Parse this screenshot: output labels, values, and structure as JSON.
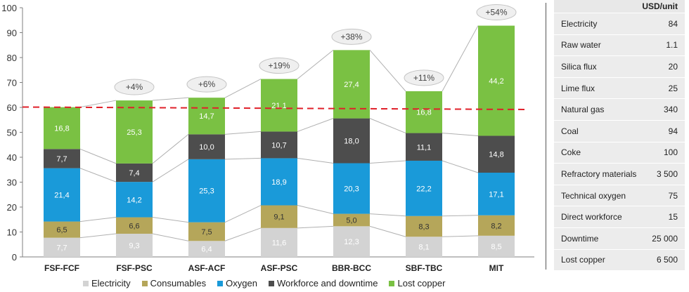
{
  "chart_data": {
    "type": "bar",
    "stacked": true,
    "categories": [
      "FSF-FCF",
      "FSF-PSC",
      "ASF-ACF",
      "ASF-PSC",
      "BBR-BCC",
      "SBF-TBC",
      "MIT"
    ],
    "ylim": [
      0,
      100
    ],
    "yticks": [
      0,
      10,
      20,
      30,
      40,
      50,
      60,
      70,
      80,
      90,
      100
    ],
    "grid": false,
    "legend_position": "bottom",
    "reference_line": 60,
    "series": [
      {
        "name": "Electricity",
        "color": "#d3d3d3",
        "values": [
          7.7,
          9.3,
          6.4,
          11.6,
          12.3,
          8.1,
          8.5
        ],
        "labels": [
          "7,7",
          "9,3",
          "6,4",
          "11,6",
          "12,3",
          "8,1",
          "8,5"
        ]
      },
      {
        "name": "Consumables",
        "color": "#b5a65a",
        "values": [
          6.5,
          6.6,
          7.5,
          9.1,
          5.0,
          8.3,
          8.2
        ],
        "labels": [
          "6,5",
          "6,6",
          "7,5",
          "9,1",
          "5,0",
          "8,3",
          "8,2"
        ]
      },
      {
        "name": "Oxygen",
        "color": "#1a9ad9",
        "values": [
          21.4,
          14.2,
          25.3,
          18.9,
          20.3,
          22.2,
          17.1
        ],
        "labels": [
          "21,4",
          "14,2",
          "25,3",
          "18,9",
          "20,3",
          "22,2",
          "17,1"
        ]
      },
      {
        "name": "Workforce and downtime",
        "color": "#4d4d4d",
        "values": [
          7.7,
          7.4,
          10.0,
          10.7,
          18.0,
          11.1,
          14.8
        ],
        "labels": [
          "7,7",
          "7,4",
          "10,0",
          "10,7",
          "18,0",
          "11,1",
          "14,8"
        ]
      },
      {
        "name": "Lost copper",
        "color": "#7ac143",
        "values": [
          16.8,
          25.3,
          14.7,
          21.1,
          27.4,
          16.8,
          44.2
        ],
        "labels": [
          "16,8",
          "25,3",
          "14,7",
          "21,1",
          "27,4",
          "16,8",
          "44,2"
        ]
      }
    ],
    "annotations": [
      "",
      "+4%",
      "+6%",
      "+19%",
      "+38%",
      "+11%",
      "+54%"
    ]
  },
  "cost_table": {
    "header": "USD/unit",
    "rows": [
      {
        "label": "Electricity",
        "value": "84"
      },
      {
        "label": "Raw water",
        "value": "1.1"
      },
      {
        "label": "Silica flux",
        "value": "20"
      },
      {
        "label": "Lime flux",
        "value": "25"
      },
      {
        "label": "Natural gas",
        "value": "340"
      },
      {
        "label": "Coal",
        "value": "94"
      },
      {
        "label": "Coke",
        "value": "100"
      },
      {
        "label": "Refractory materials",
        "value": "3 500"
      },
      {
        "label": "Technical oxygen",
        "value": "75"
      },
      {
        "label": "Direct workforce",
        "value": "15"
      },
      {
        "label": "Downtime",
        "value": "25 000"
      },
      {
        "label": "Lost copper",
        "value": "6 500"
      }
    ]
  },
  "colors": {
    "reference_line": "#e0202a",
    "connector": "#b0b0b0",
    "axis": "#7f7f7f"
  }
}
